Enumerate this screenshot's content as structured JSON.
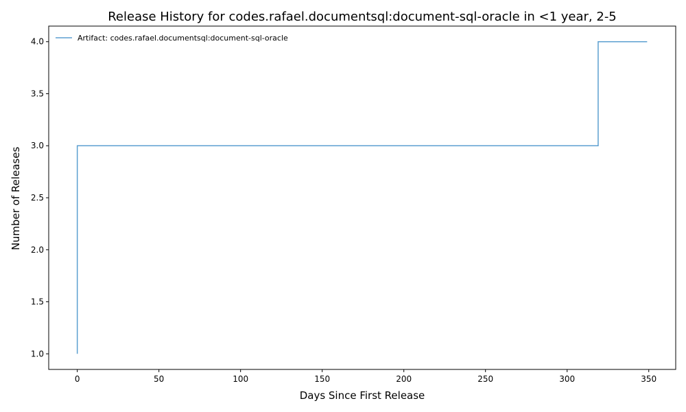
{
  "chart_data": {
    "type": "line",
    "step": "post",
    "title": "Release History for codes.rafael.documentsql:document-sql-oracle in <1 year, 2-5",
    "xlabel": "Days Since First Release",
    "ylabel": "Number of Releases",
    "xlim": [
      -17.5,
      366.5
    ],
    "ylim": [
      0.85,
      4.15
    ],
    "xticks": [
      0,
      50,
      100,
      150,
      200,
      250,
      300,
      350
    ],
    "yticks": [
      1.0,
      1.5,
      2.0,
      2.5,
      3.0,
      3.5,
      4.0
    ],
    "ytick_labels": [
      "1.0",
      "1.5",
      "2.0",
      "2.5",
      "3.0",
      "3.5",
      "4.0"
    ],
    "grid": false,
    "legend_position": "top-left",
    "series": [
      {
        "name": "Artifact: codes.rafael.documentsql:document-sql-oracle",
        "color": "#5B9FD0",
        "x": [
          0,
          0,
          0,
          319,
          349
        ],
        "y": [
          1,
          2,
          3,
          4,
          4
        ]
      }
    ]
  }
}
